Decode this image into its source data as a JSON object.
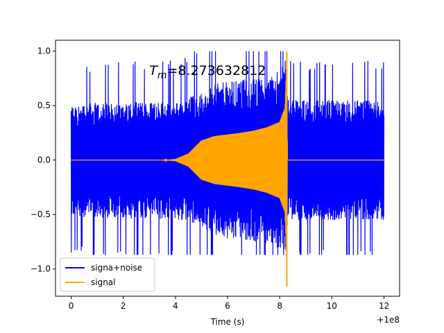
{
  "chart_data": {
    "type": "line",
    "title": "",
    "xlabel": "Time (s)",
    "ylabel": "",
    "x_offset_text": "+1e8",
    "xlim": [
      -0.6,
      12.6
    ],
    "ylim": [
      -1.25,
      1.1
    ],
    "xticks": [
      0,
      2,
      4,
      6,
      8,
      10,
      12
    ],
    "xtick_labels": [
      "0",
      "2",
      "4",
      "6",
      "8",
      "10",
      "12"
    ],
    "yticks": [
      -1.0,
      -0.5,
      0.0,
      0.5,
      1.0
    ],
    "ytick_labels": [
      "−1.0",
      "−0.5",
      "0.0",
      "0.5",
      "1.0"
    ],
    "grid": false,
    "legend_position": "lower-left",
    "annotation": {
      "prefix": "T",
      "subscript": "m",
      "text": "=8.273632812",
      "x": 3.0,
      "y": 0.82
    },
    "series": [
      {
        "name": "signa+noise",
        "color": "#0000ff",
        "x_range": [
          0,
          12
        ],
        "noise_envelope": {
          "x": [
            0,
            4,
            5,
            5.5,
            6,
            7,
            8,
            8.27,
            8.35,
            12
          ],
          "amplitude": [
            0.52,
            0.55,
            0.62,
            0.7,
            0.72,
            0.75,
            0.82,
            1.0,
            0.55,
            0.55
          ]
        },
        "peak_max": 1.0,
        "peak_min": -0.87
      },
      {
        "name": "signal",
        "color": "#ffa500",
        "x_range": [
          0,
          12
        ],
        "envelope": {
          "x": [
            0,
            3.5,
            4,
            4.5,
            5,
            5.5,
            6,
            6.5,
            7,
            7.5,
            8,
            8.2,
            8.273632812,
            8.3,
            12
          ],
          "amplitude": [
            0.0,
            0.0,
            0.01,
            0.06,
            0.18,
            0.22,
            0.235,
            0.25,
            0.27,
            0.3,
            0.35,
            0.48,
            1.0,
            0.0,
            0.0
          ]
        },
        "peak_max": 1.0,
        "peak_min": -1.16
      }
    ]
  }
}
